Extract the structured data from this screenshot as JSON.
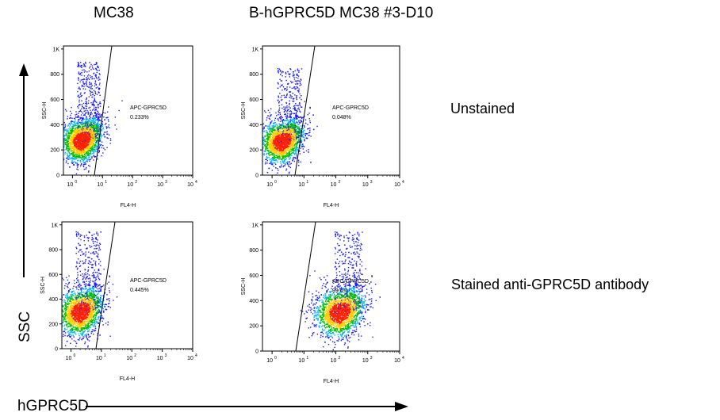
{
  "columns": [
    "MC38",
    "B-hGPRC5D MC38 #3-D10"
  ],
  "rows": [
    "Unstained",
    "Stained anti-GPRC5D antibody"
  ],
  "axis_words": {
    "y": "SSC",
    "x": "hGPRC5D"
  },
  "chart_data": [
    {
      "type": "scatter",
      "panel": "MC38 / Unstained",
      "xlabel": "FL4-H",
      "ylabel": "SSC-H",
      "x_scale": "log",
      "xlim": [
        0.5,
        10000
      ],
      "ylim": [
        0,
        1024
      ],
      "x_ticks": [
        "10^0",
        "10^1",
        "10^2",
        "10^3",
        "10^4"
      ],
      "y_ticks": [
        "0",
        "200",
        "400",
        "600",
        "800",
        "1K"
      ],
      "gate": {
        "name": "APC-GPRC5D",
        "percent": "0.233%"
      },
      "population": {
        "x_center": 2,
        "y_center": 270,
        "spread_x": 0.35,
        "spread_y": 85,
        "tail_to": 900
      }
    },
    {
      "type": "scatter",
      "panel": "B-hGPRC5D MC38 #3-D10 / Unstained",
      "xlabel": "FL4-H",
      "ylabel": "SSC-H",
      "x_scale": "log",
      "xlim": [
        0.5,
        10000
      ],
      "ylim": [
        0,
        1024
      ],
      "x_ticks": [
        "10^0",
        "10^1",
        "10^2",
        "10^3",
        "10^4"
      ],
      "y_ticks": [
        "0",
        "200",
        "400",
        "600",
        "800",
        "1K"
      ],
      "gate": {
        "name": "APC-GPRC5D",
        "percent": "0.048%"
      },
      "population": {
        "x_center": 2,
        "y_center": 260,
        "spread_x": 0.35,
        "spread_y": 85,
        "tail_to": 850
      }
    },
    {
      "type": "scatter",
      "panel": "MC38 / Stained anti-GPRC5D antibody",
      "xlabel": "FL4-H",
      "ylabel": "SSC-H",
      "x_scale": "log",
      "xlim": [
        0.5,
        10000
      ],
      "ylim": [
        0,
        1024
      ],
      "x_ticks": [
        "10^0",
        "10^1",
        "10^2",
        "10^3",
        "10^4"
      ],
      "y_ticks": [
        "0",
        "200",
        "400",
        "600",
        "800",
        "1K"
      ],
      "gate": {
        "name": "APC-GPRC5D",
        "percent": "0.445%"
      },
      "population": {
        "x_center": 2,
        "y_center": 290,
        "spread_x": 0.38,
        "spread_y": 95,
        "tail_to": 950
      }
    },
    {
      "type": "scatter",
      "panel": "B-hGPRC5D MC38 #3-D10 / Stained anti-GPRC5D antibody",
      "xlabel": "FL4-H",
      "ylabel": "SSC-H",
      "x_scale": "log",
      "xlim": [
        0.5,
        10000
      ],
      "ylim": [
        0,
        1024
      ],
      "x_ticks": [
        "10^0",
        "10^1",
        "10^2",
        "10^3",
        "10^4"
      ],
      "y_ticks": [
        "0",
        "200",
        "400",
        "600",
        "800",
        "1K"
      ],
      "gate": {
        "name": "APC-GPRC5D",
        "percent": "99.4%"
      },
      "population": {
        "x_center": 130,
        "y_center": 300,
        "spread_x": 0.4,
        "spread_y": 95,
        "tail_to": 950
      }
    }
  ],
  "colors": {
    "density_low": "#1a1aff",
    "density_mid": "#00c000",
    "density_high": "#ff2000",
    "axis": "#000000",
    "gate": "#000000",
    "text": "#000000"
  }
}
